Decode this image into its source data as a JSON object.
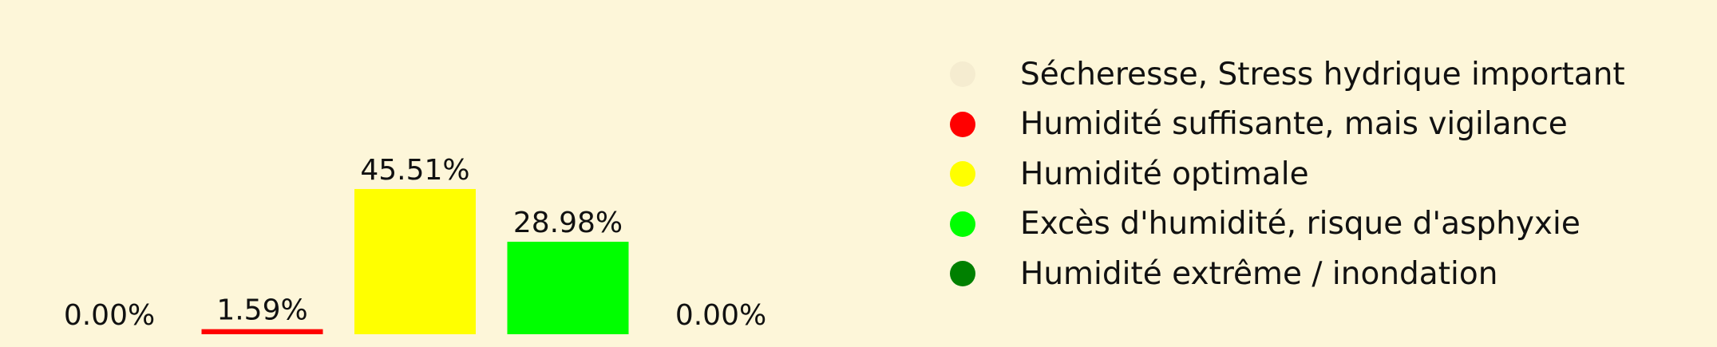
{
  "chart_data": {
    "type": "bar",
    "categories": [
      "Sécheresse, Stress hydrique important",
      "Humidité suffisante, mais vigilance",
      "Humidité optimale",
      "Excès d'humidité, risque d'asphyxie",
      "Humidité extrême / inondation"
    ],
    "values": [
      0.0,
      1.59,
      45.51,
      28.98,
      0.0
    ],
    "data_labels": [
      "0.00%",
      "1.59%",
      "45.51%",
      "28.98%",
      "0.00%"
    ],
    "colors": [
      "#f5ecd0",
      "#ff0000",
      "#ffff00",
      "#00ff00",
      "#008000"
    ],
    "ylim": [
      0,
      100
    ],
    "grid": false,
    "legend": {
      "placement": "right",
      "entries": [
        {
          "label": "Sécheresse, Stress hydrique important",
          "color": "#f5ecd0"
        },
        {
          "label": "Humidité suffisante, mais vigilance",
          "color": "#ff0000"
        },
        {
          "label": "Humidité optimale",
          "color": "#ffff00"
        },
        {
          "label": "Excès d'humidité, risque d'asphyxie",
          "color": "#00ff00"
        },
        {
          "label": "Humidité extrême / inondation",
          "color": "#008000"
        }
      ]
    }
  }
}
